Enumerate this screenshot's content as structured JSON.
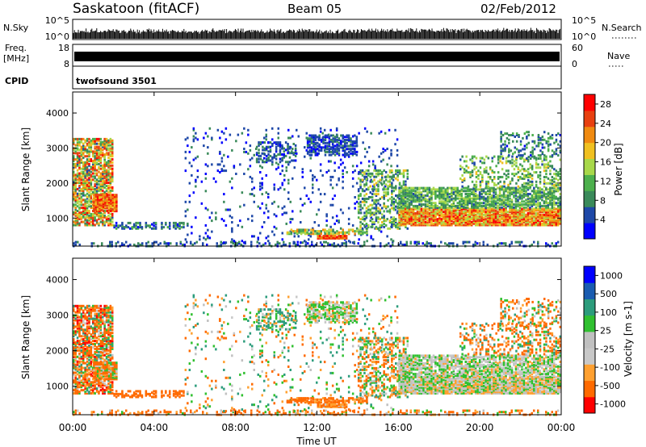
{
  "header": {
    "station": "Saskatoon (fitACF)",
    "beam": "Beam 05",
    "date": "02/Feb/2012"
  },
  "strips": {
    "nsky_label": "N.Sky",
    "nsky_ticks": [
      "10^5",
      "10^0"
    ],
    "nsearch_label": "N.Search",
    "nsearch_ticks": [
      "10^5",
      "10^0"
    ],
    "freq_label": "Freq.",
    "freq_unit": "[MHz]",
    "freq_ticks": [
      "18",
      "8"
    ],
    "nave_label": "Nave",
    "nave_ticks": [
      "60",
      "0"
    ],
    "cpid_label": "CPID",
    "cpid_text": "twofsound 3501"
  },
  "colors": {
    "power": [
      "#0000ff",
      "#1e48a8",
      "#3a8a5a",
      "#4db04d",
      "#a8d84a",
      "#f0c020",
      "#f08a10",
      "#e84010",
      "#ff0000"
    ],
    "velocity": [
      "#ff0000",
      "#ff6a00",
      "#ffa030",
      "#c8c8c8",
      "#c0c0c0",
      "#30c030",
      "#2c9c7c",
      "#1a5cb0",
      "#0000ff"
    ]
  },
  "chart_data": [
    {
      "type": "heatmap",
      "name": "power-panel",
      "ylabel": "Slant Range [km]",
      "y_ticks": [
        1000,
        2000,
        3000,
        4000
      ],
      "ylim": [
        200,
        4600
      ],
      "colorbar": {
        "label": "Power [dB]",
        "ticks": [
          "4",
          "8",
          "12",
          "16",
          "20",
          "24",
          "28"
        ],
        "range": [
          0,
          30
        ]
      }
    },
    {
      "type": "heatmap",
      "name": "velocity-panel",
      "ylabel": "Slant Range [km]",
      "y_ticks": [
        1000,
        2000,
        3000,
        4000
      ],
      "ylim": [
        200,
        4600
      ],
      "colorbar": {
        "label": "Velocity [m s-1]",
        "ticks": [
          "1000",
          "500",
          "100",
          "25",
          "-25",
          "-100",
          "-500",
          "-1000"
        ]
      }
    }
  ],
  "x_axis": {
    "label": "Time UT",
    "ticks": [
      "00:00",
      "04:00",
      "08:00",
      "12:00",
      "16:00",
      "20:00",
      "00:00"
    ],
    "range_hours": [
      0,
      24
    ]
  },
  "scatter_regions": [
    {
      "t": [
        0.0,
        2.0
      ],
      "r": [
        800,
        3300
      ],
      "p": [
        6,
        28
      ],
      "v": [
        -600,
        200
      ],
      "d": 0.7
    },
    {
      "t": [
        1.0,
        2.2
      ],
      "r": [
        1200,
        1700
      ],
      "p": [
        18,
        29
      ],
      "v": [
        -300,
        100
      ],
      "d": 0.9
    },
    {
      "t": [
        2.0,
        5.5
      ],
      "r": [
        700,
        900
      ],
      "p": [
        2,
        12
      ],
      "v": [
        -300,
        -100
      ],
      "d": 0.5
    },
    {
      "t": [
        0.0,
        24.0
      ],
      "r": [
        200,
        350
      ],
      "p": [
        2,
        10
      ],
      "v": [
        -400,
        100
      ],
      "d": 0.25
    },
    {
      "t": [
        5.5,
        16.0
      ],
      "r": [
        300,
        3600
      ],
      "p": [
        1,
        8
      ],
      "v": [
        -200,
        200
      ],
      "d": 0.06
    },
    {
      "t": [
        9.0,
        11.0
      ],
      "r": [
        2600,
        3200
      ],
      "p": [
        2,
        10
      ],
      "v": [
        -100,
        300
      ],
      "d": 0.35
    },
    {
      "t": [
        11.5,
        14.0
      ],
      "r": [
        2800,
        3400
      ],
      "p": [
        2,
        8
      ],
      "v": [
        -50,
        80
      ],
      "d": 0.55
    },
    {
      "t": [
        10.5,
        14.5
      ],
      "r": [
        550,
        700
      ],
      "p": [
        8,
        22
      ],
      "v": [
        -300,
        -50
      ],
      "d": 0.6
    },
    {
      "t": [
        12.0,
        13.5
      ],
      "r": [
        420,
        520
      ],
      "p": [
        20,
        29
      ],
      "v": [
        -200,
        0
      ],
      "d": 0.9
    },
    {
      "t": [
        14.0,
        16.5
      ],
      "r": [
        700,
        2400
      ],
      "p": [
        4,
        18
      ],
      "v": [
        -200,
        150
      ],
      "d": 0.35
    },
    {
      "t": [
        16.0,
        24.0
      ],
      "r": [
        800,
        1300
      ],
      "p": [
        14,
        28
      ],
      "v": [
        -60,
        60
      ],
      "d": 0.9
    },
    {
      "t": [
        16.0,
        24.0
      ],
      "r": [
        1300,
        1900
      ],
      "p": [
        6,
        16
      ],
      "v": [
        -40,
        60
      ],
      "d": 0.7
    },
    {
      "t": [
        19.0,
        24.0
      ],
      "r": [
        1900,
        2800
      ],
      "p": [
        6,
        18
      ],
      "v": [
        -500,
        200
      ],
      "d": 0.3
    },
    {
      "t": [
        21.0,
        24.0
      ],
      "r": [
        2700,
        3500
      ],
      "p": [
        3,
        12
      ],
      "v": [
        -300,
        150
      ],
      "d": 0.25
    }
  ]
}
